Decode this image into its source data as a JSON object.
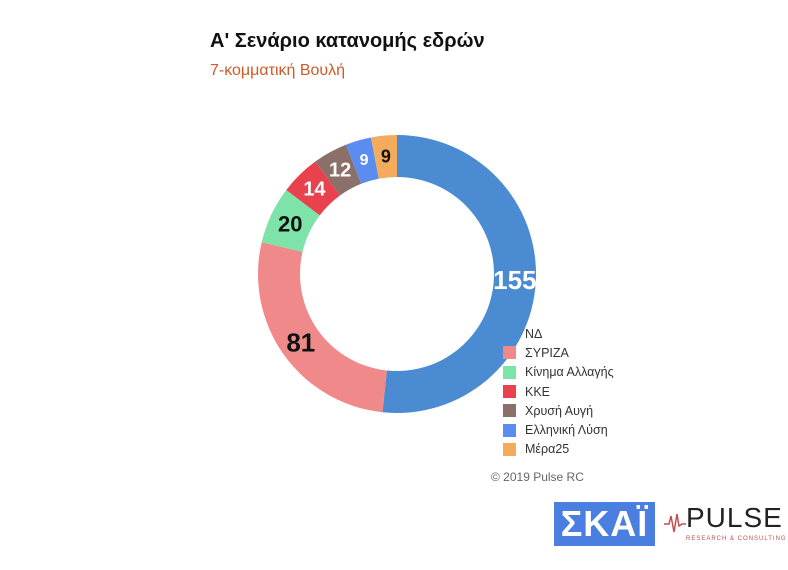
{
  "header": {
    "title": "Α' Σενάριο κατανομής εδρών",
    "subtitle": "7-κομματική Βουλή"
  },
  "chart_data": {
    "type": "pie",
    "variant": "donut",
    "title": "Α' Σενάριο κατανομής εδρών",
    "subtitle": "7-κομματική Βουλή",
    "categories": [
      "ΝΔ",
      "ΣΥΡΙΖΑ",
      "Κίνημα Αλλαγής",
      "ΚΚΕ",
      "Χρυσή Αυγή",
      "Ελληνική Λύση",
      "Μέρα25"
    ],
    "values": [
      155,
      81,
      20,
      14,
      12,
      9,
      9
    ],
    "colors": [
      "#4a8bd1",
      "#f08a8a",
      "#7de3a8",
      "#e8424f",
      "#8a7068",
      "#5b8cf0",
      "#f4ab5c"
    ],
    "label_colors": [
      "#ffffff",
      "#111111",
      "#111111",
      "#ffffff",
      "#ffffff",
      "#ffffff",
      "#111111"
    ],
    "legend_placement": "bottom-right"
  },
  "footer": {
    "copyright": "© 2019 Pulse RC"
  },
  "logos": {
    "skai": "ΣΚΑΪ",
    "pulse": "PULSE",
    "pulse_tagline": "RESEARCH & CONSULTING"
  }
}
